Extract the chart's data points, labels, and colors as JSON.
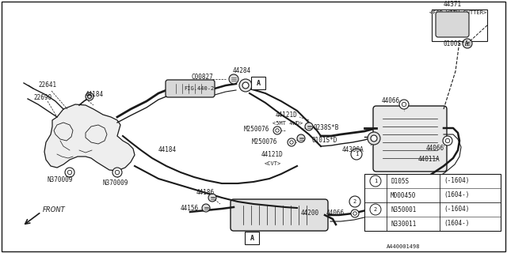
{
  "bg_color": "#ffffff",
  "line_color": "#1a1a1a",
  "fig_width": 6.4,
  "fig_height": 3.2,
  "dpi": 100,
  "legend_items": [
    {
      "circle": "1",
      "col1": "D105S   ",
      "col2": "(-1604)"
    },
    {
      "circle": "",
      "col1": "M000450 ",
      "col2": "(1604-)"
    },
    {
      "circle": "2",
      "col1": "N350001 ",
      "col2": "(-1604)"
    },
    {
      "circle": "",
      "col1": "N330011 ",
      "col2": "(1604-)"
    }
  ],
  "diagram_id": "A440001498"
}
